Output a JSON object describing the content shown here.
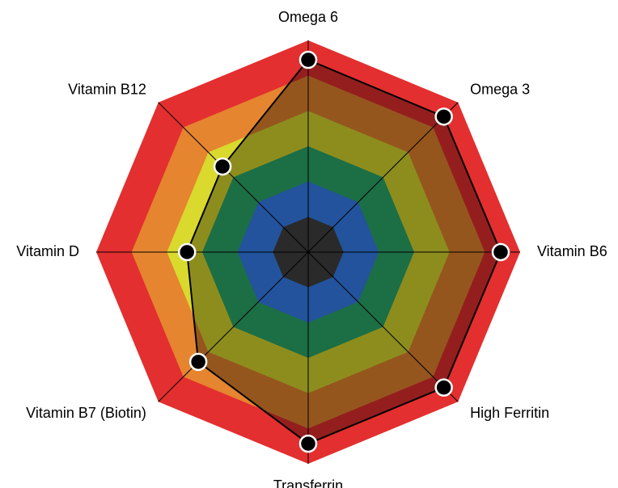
{
  "chart_data": {
    "type": "radar",
    "categories": [
      "Omega 6",
      "Omega 3",
      "Vitamin B6",
      "High Ferritin",
      "Transferrin",
      "Vitamin B7 (Biotin)",
      "Vitamin D",
      "Vitamin B12"
    ],
    "values": [
      5.45,
      5.43,
      5.45,
      5.43,
      5.43,
      4.4,
      3.43,
      3.43
    ],
    "ylim": [
      0,
      6
    ],
    "yticks": [
      1,
      2,
      3,
      4,
      5,
      6
    ],
    "band_colors": [
      "#414141",
      "#3580f0",
      "#2ba96a",
      "#d9d92e",
      "#e5852f",
      "#e32f2f"
    ],
    "color": "#000000"
  }
}
